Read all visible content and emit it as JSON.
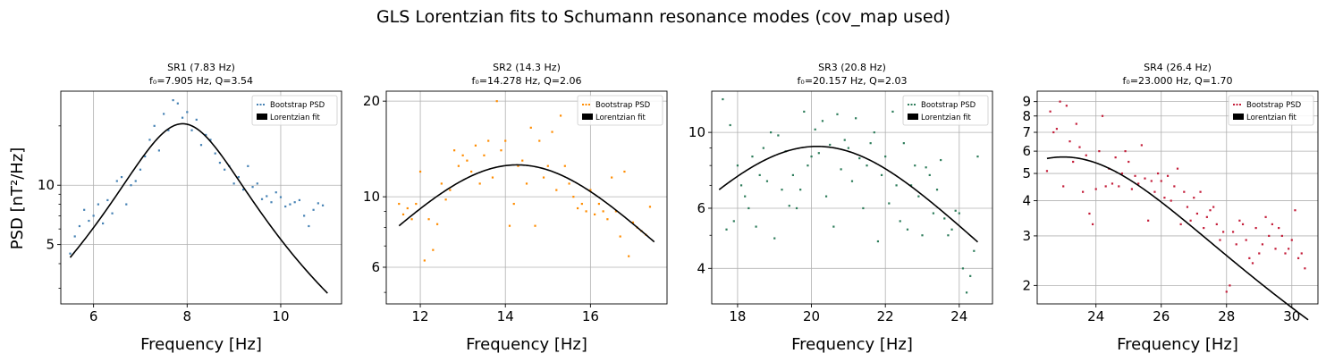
{
  "figure": {
    "suptitle": "GLS Lorentzian fits to Schumann resonance modes (cov_map used)",
    "ylabel": "PSD [nT²/Hz]"
  },
  "chart_data": [
    {
      "type": "scatter",
      "title": "SR1 (7.83 Hz)",
      "subtitle": "f₀=7.905 Hz, Q=3.54",
      "xlabel": "Frequency [Hz]",
      "xlim": [
        5.3,
        11.3
      ],
      "ylim": [
        2.5,
        30
      ],
      "yscale": "log",
      "xticks": [
        6,
        8,
        10
      ],
      "yticks": [
        5,
        10
      ],
      "grid": true,
      "legend_position": "upper-right",
      "legend": [
        "Bootstrap PSD",
        "Lorentzian fit"
      ],
      "scatter_color": "#4682b4",
      "fit": {
        "f0": 7.905,
        "peak": 20.5,
        "x_range": [
          5.5,
          11.0
        ],
        "y_at_min": 4.3,
        "color": "#000000"
      },
      "series": [
        {
          "name": "Bootstrap PSD",
          "x": [
            5.5,
            5.6,
            5.7,
            5.8,
            5.9,
            6.0,
            6.1,
            6.2,
            6.3,
            6.4,
            6.5,
            6.6,
            6.7,
            6.8,
            6.9,
            7.0,
            7.1,
            7.2,
            7.3,
            7.4,
            7.5,
            7.6,
            7.7,
            7.8,
            7.9,
            8.0,
            8.1,
            8.2,
            8.3,
            8.4,
            8.5,
            8.6,
            8.7,
            8.8,
            8.9,
            9.0,
            9.1,
            9.2,
            9.3,
            9.4,
            9.5,
            9.6,
            9.7,
            9.8,
            9.9,
            10.0,
            10.1,
            10.2,
            10.3,
            10.4,
            10.5,
            10.6,
            10.7,
            10.8,
            10.9
          ],
          "y": [
            4.5,
            5.5,
            6.2,
            7.5,
            6.6,
            7.0,
            8.0,
            6.4,
            8.4,
            7.2,
            10.5,
            11.0,
            8.0,
            10.0,
            10.5,
            12.0,
            14.0,
            17.0,
            20.0,
            15.0,
            23.0,
            19.0,
            27.0,
            26.0,
            22.0,
            23.5,
            19.0,
            21.5,
            16.0,
            18.0,
            17.0,
            14.5,
            13.0,
            12.0,
            12.5,
            10.2,
            11.0,
            9.5,
            12.5,
            9.8,
            10.2,
            8.5,
            8.8,
            8.2,
            9.2,
            8.7,
            7.8,
            8.0,
            8.2,
            8.4,
            7.0,
            6.2,
            7.5,
            8.1,
            7.9
          ]
        }
      ]
    },
    {
      "type": "scatter",
      "title": "SR2 (14.3 Hz)",
      "subtitle": "f₀=14.278 Hz, Q=2.06",
      "xlabel": "Frequency [Hz]",
      "xlim": [
        11.2,
        17.8
      ],
      "ylim": [
        4.6,
        21.5
      ],
      "yscale": "log",
      "xticks": [
        12,
        14,
        16
      ],
      "yticks": [
        6,
        10,
        20
      ],
      "grid": true,
      "legend_position": "upper-right",
      "legend": [
        "Bootstrap PSD",
        "Lorentzian fit"
      ],
      "scatter_color": "#ff8c00",
      "fit": {
        "f0": 14.278,
        "peak": 12.6,
        "x_range": [
          11.5,
          17.5
        ],
        "y_at_min": 8.1,
        "color": "#000000"
      },
      "series": [
        {
          "name": "Bootstrap PSD",
          "x": [
            11.5,
            11.6,
            11.7,
            11.8,
            11.9,
            12.0,
            12.1,
            12.2,
            12.3,
            12.4,
            12.5,
            12.6,
            12.7,
            12.8,
            12.9,
            13.0,
            13.1,
            13.2,
            13.3,
            13.4,
            13.5,
            13.6,
            13.7,
            13.8,
            13.9,
            14.0,
            14.1,
            14.2,
            14.3,
            14.4,
            14.5,
            14.6,
            14.7,
            14.8,
            14.9,
            15.0,
            15.1,
            15.2,
            15.3,
            15.4,
            15.5,
            15.6,
            15.7,
            15.8,
            15.9,
            16.0,
            16.1,
            16.2,
            16.3,
            16.4,
            16.5,
            16.6,
            16.7,
            16.8,
            16.9,
            17.0,
            17.1,
            17.2,
            17.3,
            17.4
          ],
          "y": [
            9.5,
            8.8,
            9.2,
            8.5,
            9.5,
            12.0,
            6.3,
            8.5,
            6.8,
            8.2,
            11.0,
            9.8,
            10.5,
            14.0,
            12.5,
            13.5,
            13.0,
            12.0,
            14.5,
            11.0,
            13.5,
            15.0,
            11.5,
            20.0,
            14.0,
            15.0,
            8.1,
            9.5,
            12.5,
            13.0,
            11.0,
            16.5,
            8.1,
            15.0,
            11.5,
            12.5,
            16.0,
            10.5,
            18.0,
            12.5,
            11.0,
            10.0,
            9.2,
            9.5,
            9.0,
            10.5,
            8.8,
            9.5,
            9.0,
            8.5,
            11.5,
            9.0,
            7.5,
            12.0,
            6.5,
            8.3,
            8.0,
            7.8,
            7.6,
            9.3
          ]
        }
      ]
    },
    {
      "type": "scatter",
      "title": "SR3 (20.8 Hz)",
      "subtitle": "f₀=20.157 Hz, Q=2.03",
      "xlabel": "Frequency [Hz]",
      "xlim": [
        17.3,
        24.9
      ],
      "ylim": [
        3.15,
        13.2
      ],
      "yscale": "log",
      "xticks": [
        18,
        20,
        22,
        24
      ],
      "yticks": [
        4,
        6,
        10
      ],
      "grid": true,
      "legend_position": "upper-right",
      "legend": [
        "Bootstrap PSD",
        "Lorentzian fit"
      ],
      "scatter_color": "#2e7d5b",
      "fit": {
        "f0": 20.157,
        "peak": 9.1,
        "x_range": [
          17.5,
          24.5
        ],
        "y_at_min": 6.8,
        "color": "#000000"
      },
      "series": [
        {
          "name": "Bootstrap PSD",
          "x": [
            17.6,
            17.7,
            17.8,
            17.9,
            18.0,
            18.1,
            18.2,
            18.3,
            18.4,
            18.5,
            18.6,
            18.7,
            18.8,
            18.9,
            19.0,
            19.1,
            19.2,
            19.3,
            19.4,
            19.5,
            19.6,
            19.7,
            19.8,
            19.9,
            20.0,
            20.1,
            20.2,
            20.3,
            20.4,
            20.5,
            20.6,
            20.7,
            20.8,
            20.9,
            21.0,
            21.1,
            21.2,
            21.3,
            21.4,
            21.5,
            21.6,
            21.7,
            21.8,
            21.9,
            22.0,
            22.1,
            22.2,
            22.3,
            22.4,
            22.5,
            22.6,
            22.7,
            22.8,
            22.9,
            23.0,
            23.1,
            23.2,
            23.3,
            23.4,
            23.5,
            23.6,
            23.7,
            23.8,
            23.9,
            24.0,
            24.1,
            24.2,
            24.3,
            24.4,
            24.5
          ],
          "y": [
            12.5,
            5.2,
            10.5,
            5.5,
            8.0,
            7.0,
            6.5,
            6.0,
            8.5,
            5.3,
            7.5,
            9.0,
            7.2,
            10.0,
            4.9,
            9.8,
            6.8,
            8.8,
            6.1,
            7.5,
            6.0,
            6.8,
            11.5,
            8.0,
            8.5,
            10.2,
            8.7,
            10.8,
            6.5,
            9.2,
            5.3,
            11.3,
            7.8,
            9.5,
            9.0,
            7.2,
            11.0,
            8.4,
            6.0,
            8.0,
            9.3,
            10.0,
            4.8,
            7.5,
            8.5,
            6.2,
            11.5,
            7.0,
            5.5,
            9.3,
            5.2,
            7.0,
            8.0,
            6.5,
            5.0,
            7.9,
            7.5,
            5.8,
            6.8,
            8.3,
            5.6,
            5.0,
            5.2,
            5.9,
            5.8,
            4.0,
            3.4,
            3.8,
            4.5,
            8.5
          ]
        }
      ]
    },
    {
      "type": "scatter",
      "title": "SR4 (26.4 Hz)",
      "subtitle": "f₀=23.000 Hz, Q=1.70",
      "xlabel": "Frequency [Hz]",
      "xlim": [
        22.2,
        30.8
      ],
      "ylim": [
        1.72,
        9.8
      ],
      "yscale": "log",
      "xticks": [
        24,
        26,
        28,
        30
      ],
      "yticks": [
        2,
        3,
        4,
        5,
        6,
        7,
        8,
        9
      ],
      "grid": true,
      "legend_position": "upper-right",
      "legend": [
        "Bootstrap PSD",
        "Lorentzian fit"
      ],
      "scatter_color": "#c41e3a",
      "fit": {
        "f0": 23.0,
        "peak": 5.72,
        "x_range": [
          22.5,
          30.5
        ],
        "y_at_min": 5.65,
        "color": "#000000"
      },
      "series": [
        {
          "name": "Bootstrap PSD",
          "x": [
            22.5,
            22.6,
            22.7,
            22.8,
            22.9,
            23.0,
            23.1,
            23.2,
            23.3,
            23.4,
            23.5,
            23.6,
            23.7,
            23.8,
            23.9,
            24.0,
            24.1,
            24.2,
            24.3,
            24.4,
            24.5,
            24.6,
            24.7,
            24.8,
            24.9,
            25.0,
            25.1,
            25.2,
            25.3,
            25.4,
            25.5,
            25.6,
            25.7,
            25.8,
            25.9,
            26.0,
            26.1,
            26.2,
            26.3,
            26.4,
            26.5,
            26.6,
            26.7,
            26.8,
            26.9,
            27.0,
            27.1,
            27.2,
            27.3,
            27.4,
            27.5,
            27.6,
            27.7,
            27.8,
            27.9,
            28.0,
            28.1,
            28.2,
            28.3,
            28.4,
            28.5,
            28.6,
            28.7,
            28.8,
            28.9,
            29.0,
            29.1,
            29.2,
            29.3,
            29.4,
            29.5,
            29.6,
            29.7,
            29.8,
            29.9,
            30.0,
            30.1,
            30.2,
            30.3,
            30.4
          ],
          "y": [
            5.1,
            8.3,
            7.0,
            7.2,
            9.0,
            4.5,
            8.7,
            6.5,
            5.5,
            7.5,
            6.2,
            4.3,
            5.8,
            3.6,
            3.3,
            4.4,
            6.0,
            8.0,
            4.5,
            5.2,
            4.6,
            5.7,
            4.5,
            5.0,
            6.0,
            5.5,
            4.4,
            4.9,
            4.6,
            6.3,
            4.8,
            3.4,
            4.7,
            4.3,
            5.0,
            4.7,
            4.1,
            4.9,
            4.0,
            4.5,
            5.2,
            3.3,
            4.3,
            3.8,
            3.4,
            4.1,
            3.6,
            4.3,
            3.2,
            3.5,
            3.7,
            3.8,
            3.3,
            2.9,
            3.1,
            1.9,
            2.0,
            3.1,
            2.8,
            3.4,
            3.3,
            2.9,
            2.5,
            2.4,
            3.2,
            2.6,
            2.8,
            3.5,
            3.0,
            3.3,
            2.7,
            3.2,
            3.0,
            2.6,
            2.7,
            2.9,
            3.7,
            2.5,
            2.6,
            2.3
          ]
        }
      ]
    }
  ]
}
